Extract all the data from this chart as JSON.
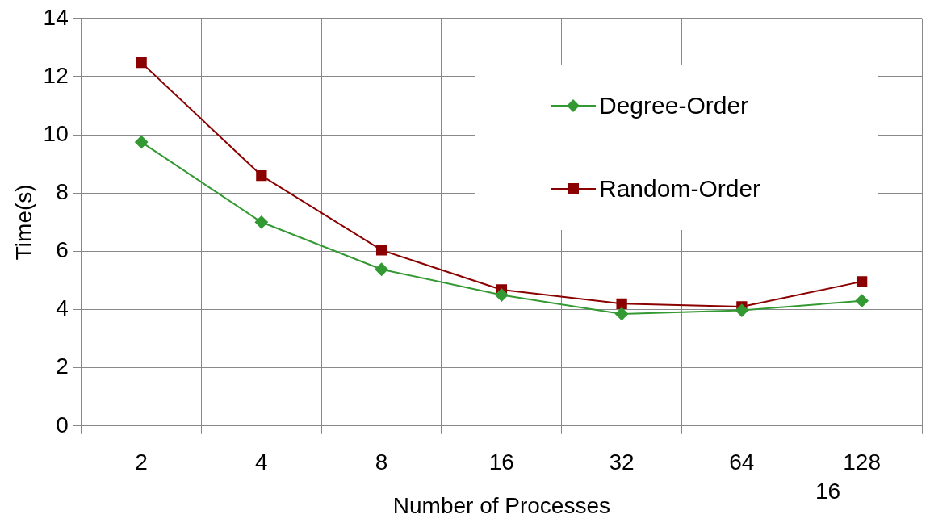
{
  "chart_data": {
    "type": "line",
    "xlabel": "Number of Processes",
    "ylabel": "Time(s)",
    "categories": [
      "2",
      "4",
      "8",
      "16",
      "32",
      "64",
      "128"
    ],
    "series": [
      {
        "name": "Degree-Order",
        "color": "#339933",
        "marker": "diamond",
        "values": [
          9.75,
          7.0,
          5.38,
          4.5,
          3.85,
          3.97,
          4.3
        ]
      },
      {
        "name": "Random-Order",
        "color": "#8b0000",
        "marker": "square",
        "values": [
          12.48,
          8.6,
          6.04,
          4.68,
          4.2,
          4.1,
          4.96
        ]
      }
    ],
    "ylim": [
      0,
      14
    ],
    "yticks": [
      0,
      2,
      4,
      6,
      8,
      10,
      12,
      14
    ],
    "grid": true,
    "legend": "top right",
    "line_style": "solid",
    "annotations": [
      "16"
    ]
  }
}
